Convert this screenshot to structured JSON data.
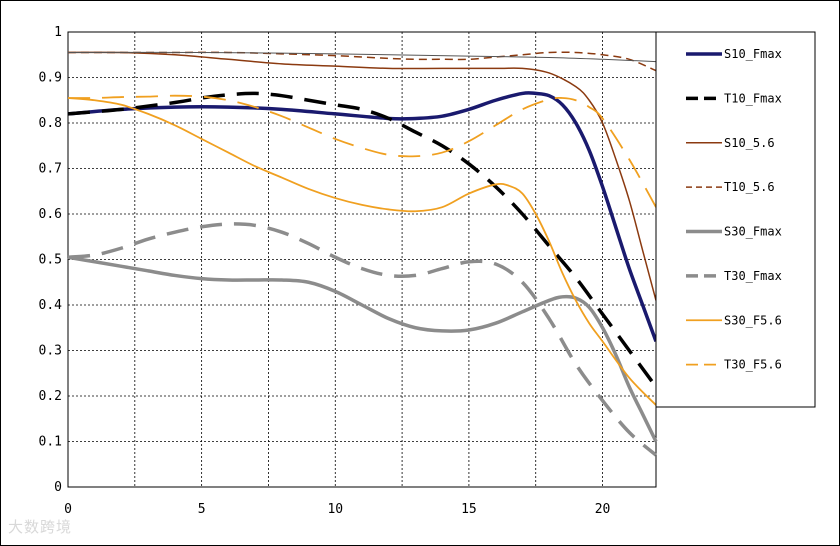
{
  "chart_data": {
    "type": "line",
    "title": "",
    "xlabel": "",
    "ylabel": "",
    "xlim": [
      0,
      22
    ],
    "ylim": [
      0,
      1
    ],
    "xticks": [
      0,
      5,
      10,
      15,
      20
    ],
    "yticks": [
      0,
      0.1,
      0.2,
      0.3,
      0.4,
      0.5,
      0.6,
      0.7,
      0.8,
      0.9,
      1
    ],
    "grid": true,
    "legend_position": "right",
    "series": [
      {
        "name": "S10_Fmax",
        "color": "#1a1a6e",
        "dash": "solid",
        "width": 3.5,
        "x": [
          0,
          2,
          4,
          6,
          8,
          10,
          12,
          13,
          14,
          15,
          16,
          17,
          17.5,
          18,
          18.5,
          19,
          19.5,
          20,
          20.5,
          21,
          21.5,
          22
        ],
        "y": [
          0.82,
          0.83,
          0.835,
          0.835,
          0.83,
          0.82,
          0.81,
          0.81,
          0.815,
          0.83,
          0.85,
          0.865,
          0.865,
          0.86,
          0.84,
          0.8,
          0.74,
          0.66,
          0.57,
          0.48,
          0.4,
          0.32
        ]
      },
      {
        "name": "T10_Fmax",
        "color": "#000000",
        "dash": "dash-long",
        "width": 3.5,
        "x": [
          0,
          2,
          4,
          5,
          6,
          7,
          8,
          9,
          10,
          11,
          12,
          13,
          14,
          15,
          16,
          17,
          18,
          19,
          20,
          21,
          22
        ],
        "y": [
          0.82,
          0.83,
          0.845,
          0.855,
          0.862,
          0.865,
          0.86,
          0.85,
          0.84,
          0.83,
          0.81,
          0.78,
          0.75,
          0.71,
          0.66,
          0.6,
          0.53,
          0.46,
          0.38,
          0.3,
          0.22
        ]
      },
      {
        "name": "S10_5.6",
        "color": "#8b3a10",
        "dash": "solid",
        "width": 1.5,
        "x": [
          0,
          2,
          4,
          6,
          8,
          10,
          12,
          14,
          16,
          17,
          18,
          19,
          19.5,
          20,
          20.5,
          21,
          21.5,
          22
        ],
        "y": [
          0.955,
          0.955,
          0.95,
          0.94,
          0.93,
          0.925,
          0.92,
          0.92,
          0.92,
          0.92,
          0.91,
          0.88,
          0.85,
          0.8,
          0.72,
          0.63,
          0.52,
          0.41
        ]
      },
      {
        "name": "T10_5.6",
        "color": "#8b3a10",
        "dash": "dash-short",
        "width": 1.5,
        "x": [
          0,
          2,
          4,
          6,
          8,
          10,
          12,
          13,
          14,
          15,
          16,
          17,
          18,
          19,
          20,
          21,
          22
        ],
        "y": [
          0.955,
          0.955,
          0.955,
          0.955,
          0.952,
          0.948,
          0.942,
          0.94,
          0.94,
          0.94,
          0.945,
          0.95,
          0.955,
          0.955,
          0.95,
          0.94,
          0.915
        ]
      },
      {
        "name": "S30_Fmax",
        "color": "#8c8c8c",
        "dash": "solid",
        "width": 3.5,
        "x": [
          0,
          1,
          2,
          3,
          4,
          5,
          6,
          7,
          8,
          9,
          10,
          11,
          12,
          13,
          14,
          15,
          16,
          17,
          18,
          18.5,
          19,
          19.5,
          20,
          20.5,
          21,
          21.5,
          22
        ],
        "y": [
          0.505,
          0.495,
          0.485,
          0.475,
          0.465,
          0.458,
          0.455,
          0.455,
          0.455,
          0.45,
          0.43,
          0.4,
          0.37,
          0.35,
          0.343,
          0.345,
          0.36,
          0.385,
          0.41,
          0.418,
          0.415,
          0.395,
          0.35,
          0.29,
          0.22,
          0.16,
          0.1
        ]
      },
      {
        "name": "T30_Fmax",
        "color": "#8c8c8c",
        "dash": "dash-long",
        "width": 3.5,
        "x": [
          0,
          1,
          2,
          3,
          4,
          5,
          6,
          7,
          8,
          9,
          10,
          11,
          12,
          13,
          14,
          15,
          16,
          17,
          18,
          19,
          20,
          21,
          22
        ],
        "y": [
          0.505,
          0.51,
          0.525,
          0.545,
          0.56,
          0.572,
          0.578,
          0.575,
          0.56,
          0.535,
          0.505,
          0.48,
          0.465,
          0.465,
          0.48,
          0.495,
          0.49,
          0.45,
          0.37,
          0.27,
          0.19,
          0.12,
          0.07
        ]
      },
      {
        "name": "S30_F5.6",
        "color": "#f0a020",
        "dash": "solid",
        "width": 1.8,
        "x": [
          0,
          1,
          2,
          3,
          4,
          5,
          6,
          7,
          8,
          9,
          10,
          11,
          12,
          13,
          14,
          15,
          16,
          16.5,
          17,
          17.5,
          18,
          18.5,
          19,
          19.5,
          20,
          21,
          22
        ],
        "y": [
          0.855,
          0.85,
          0.84,
          0.82,
          0.795,
          0.765,
          0.735,
          0.705,
          0.68,
          0.655,
          0.635,
          0.62,
          0.61,
          0.606,
          0.615,
          0.645,
          0.665,
          0.662,
          0.645,
          0.6,
          0.54,
          0.47,
          0.41,
          0.36,
          0.32,
          0.24,
          0.18
        ]
      },
      {
        "name": "T30_F5.6",
        "color": "#f0a020",
        "dash": "dash-long",
        "width": 1.8,
        "x": [
          0,
          1,
          2,
          3,
          4,
          5,
          6,
          7,
          8,
          9,
          10,
          11,
          12,
          13,
          14,
          15,
          16,
          17,
          18,
          18.5,
          19,
          19.5,
          20,
          21,
          22
        ],
        "y": [
          0.855,
          0.855,
          0.857,
          0.858,
          0.86,
          0.858,
          0.85,
          0.835,
          0.815,
          0.79,
          0.765,
          0.745,
          0.73,
          0.727,
          0.735,
          0.76,
          0.795,
          0.83,
          0.852,
          0.855,
          0.85,
          0.835,
          0.81,
          0.72,
          0.615
        ]
      },
      {
        "name": "",
        "color": "#555555",
        "dash": "solid",
        "width": 1,
        "x": [
          0,
          5,
          10,
          15,
          18,
          20,
          22
        ],
        "y": [
          0.955,
          0.955,
          0.952,
          0.947,
          0.944,
          0.94,
          0.935
        ]
      }
    ]
  },
  "watermark": "大数跨境"
}
